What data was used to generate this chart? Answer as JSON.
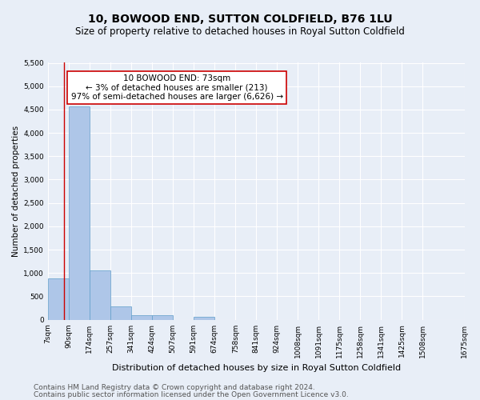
{
  "title1": "10, BOWOOD END, SUTTON COLDFIELD, B76 1LU",
  "title2": "Size of property relative to detached houses in Royal Sutton Coldfield",
  "xlabel": "Distribution of detached houses by size in Royal Sutton Coldfield",
  "ylabel": "Number of detached properties",
  "footer1": "Contains HM Land Registry data © Crown copyright and database right 2024.",
  "footer2": "Contains public sector information licensed under the Open Government Licence v3.0.",
  "annotation_title": "10 BOWOOD END: 73sqm",
  "annotation_line2": "← 3% of detached houses are smaller (213)",
  "annotation_line3": "97% of semi-detached houses are larger (6,626) →",
  "property_line_x": 73,
  "bar_values": [
    880,
    4560,
    1060,
    290,
    95,
    95,
    0,
    55,
    0,
    0,
    0,
    0,
    0,
    0,
    0,
    0,
    0,
    0,
    0
  ],
  "bin_edges": [
    7,
    90,
    174,
    257,
    341,
    424,
    507,
    591,
    674,
    758,
    841,
    924,
    1008,
    1091,
    1175,
    1258,
    1341,
    1425,
    1508,
    1675
  ],
  "tick_labels": [
    "7sqm",
    "90sqm",
    "174sqm",
    "257sqm",
    "341sqm",
    "424sqm",
    "507sqm",
    "591sqm",
    "674sqm",
    "758sqm",
    "841sqm",
    "924sqm",
    "1008sqm",
    "1091sqm",
    "1175sqm",
    "1258sqm",
    "1341sqm",
    "1425sqm",
    "1508sqm",
    "1675sqm"
  ],
  "ylim": [
    0,
    5500
  ],
  "yticks": [
    0,
    500,
    1000,
    1500,
    2000,
    2500,
    3000,
    3500,
    4000,
    4500,
    5000,
    5500
  ],
  "bar_color": "#aec6e8",
  "bar_edge_color": "#5f9dc9",
  "property_line_color": "#cc0000",
  "annotation_box_color": "#ffffff",
  "annotation_box_edge": "#cc0000",
  "bg_color": "#e8eef7",
  "grid_color": "#ffffff",
  "title1_fontsize": 10,
  "title2_fontsize": 8.5,
  "annotation_fontsize": 7.5,
  "footer_fontsize": 6.5,
  "tick_fontsize": 6.5,
  "ylabel_fontsize": 7.5,
  "xlabel_fontsize": 8
}
